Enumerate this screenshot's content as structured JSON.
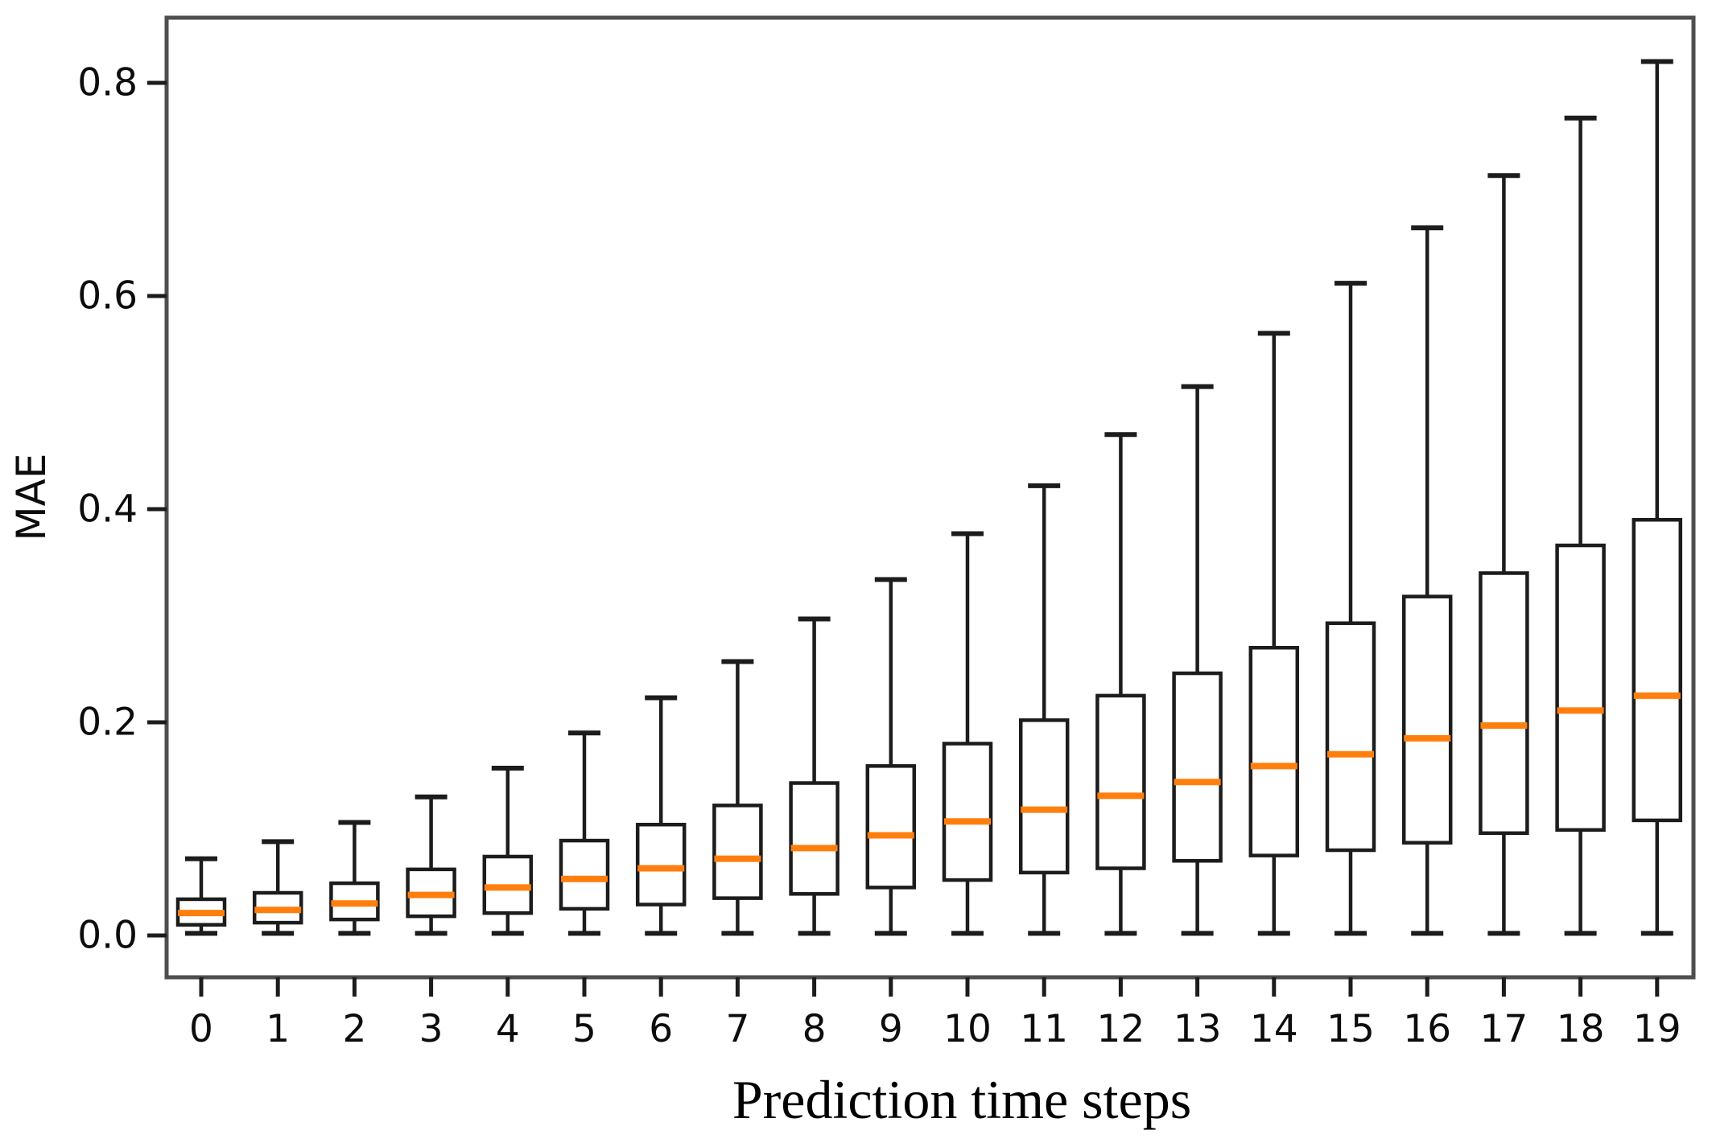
{
  "figure": {
    "background": "#ffffff",
    "frame_color": "#4e4e4e",
    "tick_color": "#1c1c1c"
  },
  "chart_data": {
    "type": "boxplot",
    "title": "",
    "xlabel": "Prediction time steps",
    "ylabel": "MAE",
    "categories": [
      "0",
      "1",
      "2",
      "3",
      "4",
      "5",
      "6",
      "7",
      "8",
      "9",
      "10",
      "11",
      "12",
      "13",
      "14",
      "15",
      "16",
      "17",
      "18",
      "19"
    ],
    "y_ticks": [
      0.0,
      0.2,
      0.4,
      0.6,
      0.8
    ],
    "y_tick_labels": [
      "0.0",
      "0.2",
      "0.4",
      "0.6",
      "0.8"
    ],
    "ylim": [
      -0.04,
      0.86
    ],
    "grid": false,
    "legend": "none",
    "box_color": "#1c1c1c",
    "median_color": "#ff7f0e",
    "series": [
      {
        "step": "0",
        "whislo": 0.002,
        "q1": 0.01,
        "med": 0.021,
        "q3": 0.034,
        "whishi": 0.072
      },
      {
        "step": "1",
        "whislo": 0.002,
        "q1": 0.012,
        "med": 0.024,
        "q3": 0.04,
        "whishi": 0.088
      },
      {
        "step": "2",
        "whislo": 0.002,
        "q1": 0.015,
        "med": 0.03,
        "q3": 0.049,
        "whishi": 0.106
      },
      {
        "step": "3",
        "whislo": 0.002,
        "q1": 0.018,
        "med": 0.038,
        "q3": 0.062,
        "whishi": 0.13
      },
      {
        "step": "4",
        "whislo": 0.002,
        "q1": 0.021,
        "med": 0.045,
        "q3": 0.074,
        "whishi": 0.157
      },
      {
        "step": "5",
        "whislo": 0.002,
        "q1": 0.025,
        "med": 0.053,
        "q3": 0.089,
        "whishi": 0.19
      },
      {
        "step": "6",
        "whislo": 0.002,
        "q1": 0.029,
        "med": 0.063,
        "q3": 0.104,
        "whishi": 0.223
      },
      {
        "step": "7",
        "whislo": 0.002,
        "q1": 0.035,
        "med": 0.072,
        "q3": 0.122,
        "whishi": 0.257
      },
      {
        "step": "8",
        "whislo": 0.002,
        "q1": 0.039,
        "med": 0.082,
        "q3": 0.143,
        "whishi": 0.297
      },
      {
        "step": "9",
        "whislo": 0.002,
        "q1": 0.045,
        "med": 0.094,
        "q3": 0.159,
        "whishi": 0.334
      },
      {
        "step": "10",
        "whislo": 0.002,
        "q1": 0.052,
        "med": 0.107,
        "q3": 0.18,
        "whishi": 0.377
      },
      {
        "step": "11",
        "whislo": 0.002,
        "q1": 0.059,
        "med": 0.118,
        "q3": 0.202,
        "whishi": 0.422
      },
      {
        "step": "12",
        "whislo": 0.002,
        "q1": 0.063,
        "med": 0.131,
        "q3": 0.225,
        "whishi": 0.47
      },
      {
        "step": "13",
        "whislo": 0.002,
        "q1": 0.07,
        "med": 0.144,
        "q3": 0.246,
        "whishi": 0.515
      },
      {
        "step": "14",
        "whislo": 0.002,
        "q1": 0.075,
        "med": 0.159,
        "q3": 0.27,
        "whishi": 0.565
      },
      {
        "step": "15",
        "whislo": 0.002,
        "q1": 0.08,
        "med": 0.17,
        "q3": 0.293,
        "whishi": 0.612
      },
      {
        "step": "16",
        "whislo": 0.002,
        "q1": 0.087,
        "med": 0.185,
        "q3": 0.318,
        "whishi": 0.664
      },
      {
        "step": "17",
        "whislo": 0.002,
        "q1": 0.096,
        "med": 0.197,
        "q3": 0.34,
        "whishi": 0.713
      },
      {
        "step": "18",
        "whislo": 0.002,
        "q1": 0.099,
        "med": 0.211,
        "q3": 0.366,
        "whishi": 0.767
      },
      {
        "step": "19",
        "whislo": 0.002,
        "q1": 0.108,
        "med": 0.225,
        "q3": 0.39,
        "whishi": 0.82
      }
    ]
  }
}
